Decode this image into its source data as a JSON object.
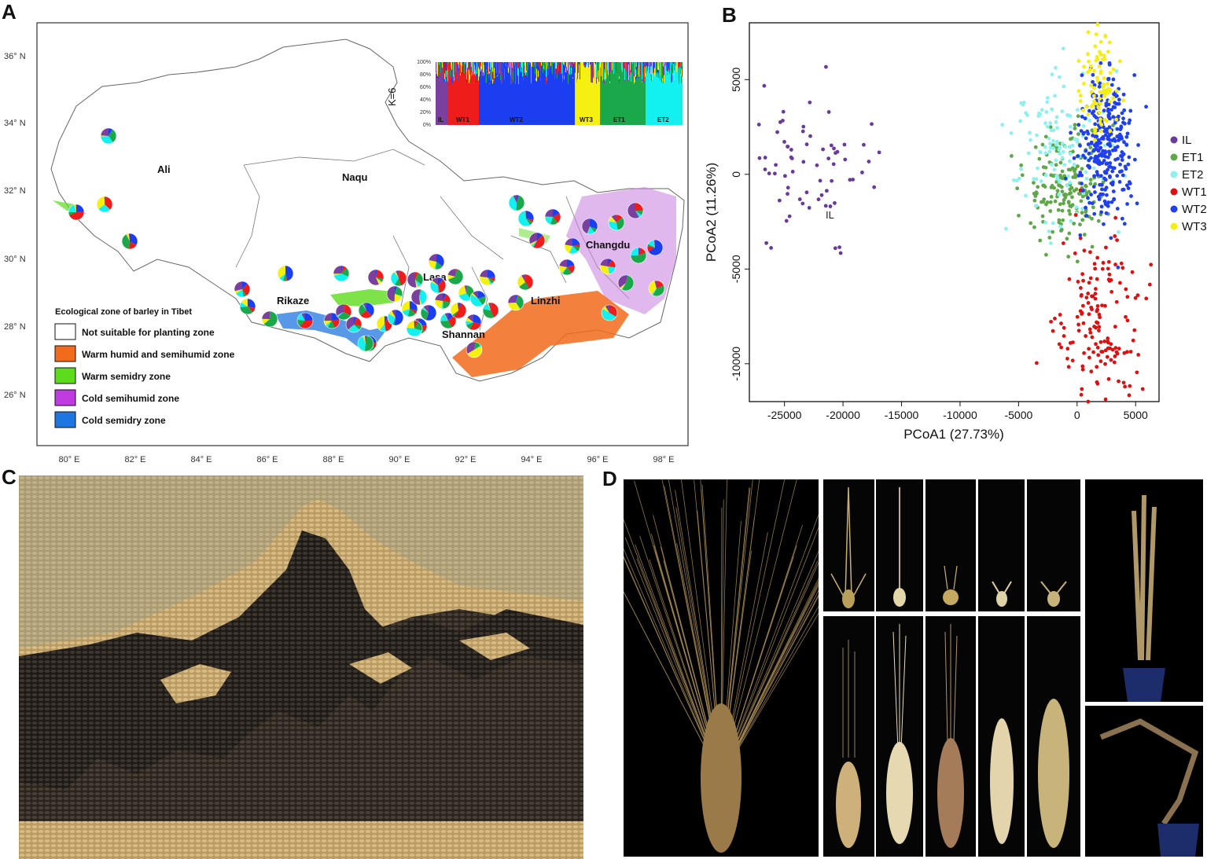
{
  "panels": {
    "a": "A",
    "b": "B",
    "c": "C",
    "d": "D"
  },
  "map": {
    "lat_ticks": [
      "36° N",
      "34° N",
      "32° N",
      "30° N",
      "28° N",
      "26° N"
    ],
    "lon_ticks": [
      "80° E",
      "82° E",
      "84° E",
      "86° E",
      "88° E",
      "90° E",
      "92° E",
      "94° E",
      "96° E",
      "98° E"
    ],
    "regions": [
      "Ali",
      "Naqu",
      "Rikaze",
      "Lasa",
      "Shannan",
      "Linzhi",
      "Changdu"
    ],
    "legend_title": "Ecological zone of barley in Tibet",
    "legend": [
      {
        "label": "Not suitable for planting zone",
        "color": "#ffffff"
      },
      {
        "label": "Warm humid and semihumid zone",
        "color": "#f26a1b"
      },
      {
        "label": "Warm semidry zone",
        "color": "#5ddc1c"
      },
      {
        "label": "Cold semihumid zone",
        "color": "#c03ce0"
      },
      {
        "label": "Cold semidry zone",
        "color": "#1f76e0"
      }
    ],
    "structure": {
      "k_label": "K=6",
      "y_ticks": [
        "100%",
        "80%",
        "60%",
        "40%",
        "20%",
        "0%"
      ],
      "groups": [
        "IL",
        "WT1",
        "WT2",
        "WT3",
        "ET1",
        "ET2"
      ],
      "colors": {
        "IL": "#7b3fa0",
        "WT1": "#ef1c1c",
        "WT2": "#1b3ff0",
        "WT3": "#f5f010",
        "ET1": "#1aa84a",
        "ET2": "#12f0f0"
      }
    }
  },
  "chart_data": {
    "type": "scatter",
    "xlabel": "PCoA1 (27.73%)",
    "ylabel": "PCoA2 (11.26%)",
    "xlim": [
      -28000,
      7000
    ],
    "ylim": [
      -12000,
      8000
    ],
    "x_ticks": [
      -25000,
      -20000,
      -15000,
      -10000,
      -5000,
      0,
      5000
    ],
    "y_ticks": [
      5000,
      0,
      -5000,
      -10000
    ],
    "annotation": "IL",
    "legend_position": "right",
    "series": [
      {
        "name": "IL",
        "color": "#6a3a9a",
        "center": [
          -23000,
          200
        ],
        "spread": [
          2500,
          2200
        ],
        "count": 70
      },
      {
        "name": "ET1",
        "color": "#5fa84a",
        "center": [
          -1000,
          -500
        ],
        "spread": [
          1600,
          1500
        ],
        "count": 180
      },
      {
        "name": "ET2",
        "color": "#8ff0f0",
        "center": [
          -1500,
          1200
        ],
        "spread": [
          2000,
          2200
        ],
        "count": 130
      },
      {
        "name": "WT1",
        "color": "#e01010",
        "center": [
          2000,
          -8000
        ],
        "spread": [
          1800,
          2200
        ],
        "count": 160
      },
      {
        "name": "WT2",
        "color": "#1f3ff0",
        "center": [
          2500,
          1500
        ],
        "spread": [
          1100,
          1900
        ],
        "count": 300
      },
      {
        "name": "WT3",
        "color": "#f5ee10",
        "center": [
          1800,
          4800
        ],
        "spread": [
          800,
          1500
        ],
        "count": 90
      }
    ]
  }
}
